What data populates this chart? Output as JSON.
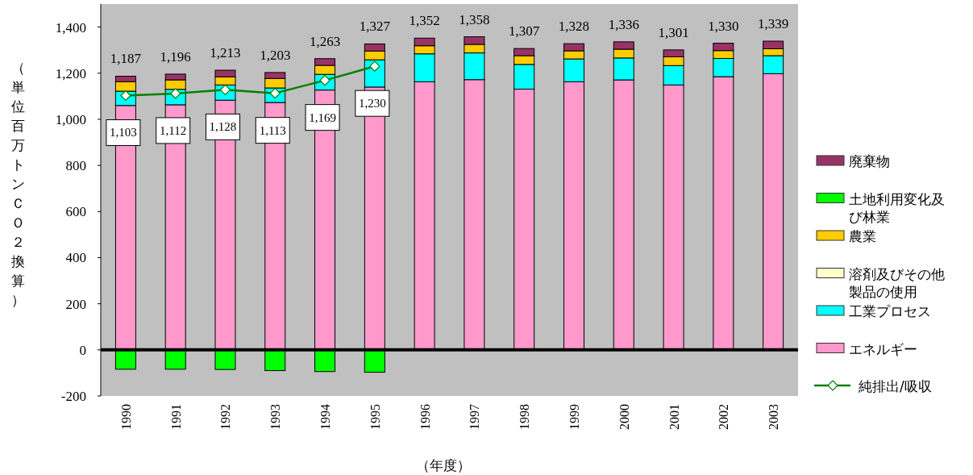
{
  "chart_data": {
    "type": "bar",
    "stacked": true,
    "xlabel": "（年度）",
    "ylabel": "（単位百万トンＣＯ２換算）",
    "categories": [
      "1990",
      "1991",
      "1992",
      "1993",
      "1994",
      "1995",
      "1996",
      "1997",
      "1998",
      "1999",
      "2000",
      "2001",
      "2002",
      "2003"
    ],
    "ylim": [
      -200,
      1500
    ],
    "yticks": [
      -200,
      0,
      {
        "value": 200,
        "label": "200"
      },
      {
        "value": 400,
        "label": "400"
      },
      {
        "value": 600,
        "label": "600"
      },
      {
        "value": 800,
        "label": "800"
      },
      {
        "value": 1000,
        "label": "1,000"
      },
      {
        "value": 1200,
        "label": "1,200"
      },
      {
        "value": 1400,
        "label": "1,400"
      }
    ],
    "legend": "right",
    "annotations": [
      {
        "text": "1,187",
        "x": "1990",
        "y": 1187
      },
      {
        "text": "1,196",
        "x": "1991",
        "y": 1196
      },
      {
        "text": "1,213",
        "x": "1992",
        "y": 1213
      },
      {
        "text": "1,203",
        "x": "1993",
        "y": 1203
      },
      {
        "text": "1,263",
        "x": "1994",
        "y": 1263
      },
      {
        "text": "1,327",
        "x": "1995",
        "y": 1327
      },
      {
        "text": "1,352",
        "x": "1996",
        "y": 1352
      },
      {
        "text": "1,358",
        "x": "1997",
        "y": 1358
      },
      {
        "text": "1,307",
        "x": "1998",
        "y": 1307
      },
      {
        "text": "1,328",
        "x": "1999",
        "y": 1328
      },
      {
        "text": "1,336",
        "x": "2000",
        "y": 1336
      },
      {
        "text": "1,301",
        "x": "2001",
        "y": 1301
      },
      {
        "text": "1,330",
        "x": "2002",
        "y": 1330
      },
      {
        "text": "1,339",
        "x": "2003",
        "y": 1339
      }
    ],
    "series": [
      {
        "name": "エネルギー",
        "color": "#ff99cc",
        "values": [
          1060,
          1063,
          1083,
          1073,
          1127,
          1140,
          1163,
          1172,
          1131,
          1163,
          1171,
          1149,
          1185,
          1198
        ]
      },
      {
        "name": "工業プロセス",
        "color": "#00ffff",
        "values": [
          62,
          67,
          66,
          63,
          68,
          118,
          121,
          116,
          107,
          99,
          95,
          84,
          79,
          78
        ]
      },
      {
        "name": "溶剤及びその他製品の使用",
        "color": "#ffffcc",
        "values": [
          null,
          null,
          null,
          null,
          null,
          null,
          null,
          null,
          null,
          null,
          null,
          null,
          null,
          null
        ]
      },
      {
        "name": "農業",
        "color": "#ffcc00",
        "values": [
          41,
          41,
          35,
          41,
          39,
          38,
          35,
          37,
          38,
          35,
          38,
          38,
          34,
          30
        ]
      },
      {
        "name": "土地利用変化及び林業",
        "color": "#00ff00",
        "values": [
          -84,
          -84,
          -85,
          -90,
          -94,
          -97,
          null,
          null,
          null,
          null,
          null,
          null,
          null,
          null
        ]
      },
      {
        "name": "廃棄物",
        "color": "#993366",
        "values": [
          24,
          25,
          29,
          26,
          29,
          31,
          33,
          33,
          31,
          31,
          32,
          30,
          32,
          33
        ]
      },
      {
        "name": "純排出/吸収",
        "type": "line",
        "color": "#008000",
        "marker": "diamond",
        "values": [
          1103,
          1112,
          1128,
          1113,
          1169,
          1230,
          null,
          null,
          null,
          null,
          null,
          null,
          null,
          null
        ],
        "value_labels": [
          "1,103",
          "1,112",
          "1,128",
          "1,113",
          "1,169",
          "1,230",
          null,
          null,
          null,
          null,
          null,
          null,
          null,
          null
        ]
      }
    ]
  }
}
